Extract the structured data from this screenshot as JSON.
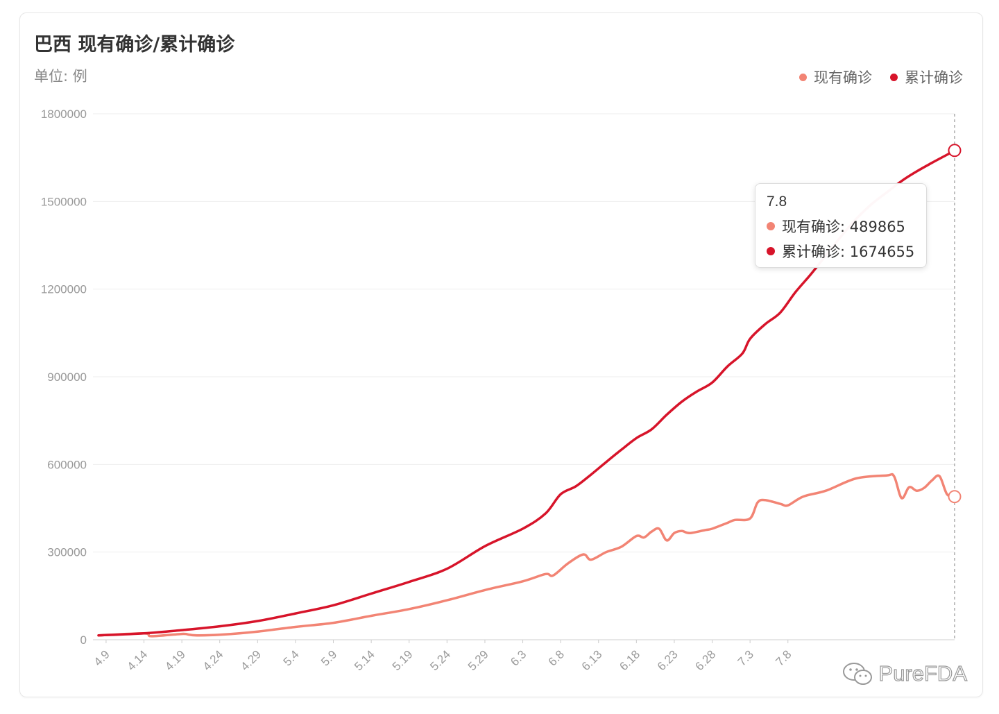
{
  "header": {
    "title": "巴西 现有确诊/累计确诊",
    "unit": "单位: 例"
  },
  "legend": [
    {
      "name": "现有确诊",
      "color": "#f28474"
    },
    {
      "name": "累计确诊",
      "color": "#d7142a"
    }
  ],
  "tooltip": {
    "date": "7.8",
    "rows": [
      {
        "label": "现有确诊: 489865",
        "color": "#f28474"
      },
      {
        "label": "累计确诊: 1674655",
        "color": "#d7142a"
      }
    ]
  },
  "watermark": {
    "text": "PureFDA",
    "icon": "wechat-icon"
  },
  "chart_data": {
    "type": "line",
    "title": "巴西 现有确诊/累计确诊",
    "ylabel": "单位: 例",
    "ylim": [
      0,
      1800000
    ],
    "yticks": [
      "0",
      "300000",
      "600000",
      "900000",
      "1200000",
      "1500000",
      "1800000"
    ],
    "xticks": [
      "4.9",
      "4.14",
      "4.19",
      "4.24",
      "4.29",
      "5.4",
      "5.9",
      "5.14",
      "5.19",
      "5.24",
      "5.29",
      "6.3",
      "6.8",
      "6.13",
      "6.18",
      "6.23",
      "6.28",
      "7.3",
      "7.8"
    ],
    "x_start_label": "4.8",
    "x_days": 91,
    "grid": "horizontal",
    "legend_position": "top-right",
    "series": [
      {
        "name": "现有确诊",
        "color": "#f28474",
        "points": [
          [
            0,
            15000
          ],
          [
            6,
            22000
          ],
          [
            7,
            12000
          ],
          [
            11,
            20000
          ],
          [
            12,
            17000
          ],
          [
            13,
            15000
          ],
          [
            16,
            17000
          ],
          [
            21,
            28000
          ],
          [
            26,
            44000
          ],
          [
            31,
            58000
          ],
          [
            36,
            82000
          ],
          [
            41,
            105000
          ],
          [
            46,
            135000
          ],
          [
            51,
            170000
          ],
          [
            56,
            200000
          ],
          [
            59,
            225000
          ],
          [
            60,
            220000
          ],
          [
            62,
            262000
          ],
          [
            64,
            292000
          ],
          [
            65,
            274000
          ],
          [
            67,
            300000
          ],
          [
            69,
            318000
          ],
          [
            71,
            355000
          ],
          [
            72,
            350000
          ],
          [
            73,
            370000
          ],
          [
            74,
            380000
          ],
          [
            75,
            340000
          ],
          [
            76,
            365000
          ],
          [
            77,
            372000
          ],
          [
            78,
            365000
          ],
          [
            80,
            375000
          ],
          [
            81,
            380000
          ],
          [
            83,
            400000
          ],
          [
            84,
            410000
          ],
          [
            86,
            415000
          ],
          [
            87,
            470000
          ],
          [
            88,
            478000
          ],
          [
            90,
            465000
          ],
          [
            91,
            460000
          ],
          [
            93,
            490000
          ],
          [
            96,
            510000
          ],
          [
            100,
            552000
          ],
          [
            104,
            562000
          ],
          [
            105,
            560000
          ],
          [
            106,
            485000
          ],
          [
            107,
            522000
          ],
          [
            108,
            510000
          ],
          [
            109,
            520000
          ],
          [
            110,
            545000
          ],
          [
            111,
            560000
          ],
          [
            112,
            498000
          ],
          [
            113,
            489865
          ]
        ]
      },
      {
        "name": "累计确诊",
        "color": "#d7142a",
        "points": [
          [
            0,
            15000
          ],
          [
            6,
            22000
          ],
          [
            11,
            33000
          ],
          [
            16,
            46000
          ],
          [
            21,
            64000
          ],
          [
            26,
            90000
          ],
          [
            31,
            118000
          ],
          [
            36,
            158000
          ],
          [
            41,
            198000
          ],
          [
            46,
            243000
          ],
          [
            51,
            320000
          ],
          [
            56,
            380000
          ],
          [
            59,
            432000
          ],
          [
            61,
            498000
          ],
          [
            63,
            525000
          ],
          [
            65,
            565000
          ],
          [
            67,
            608000
          ],
          [
            69,
            650000
          ],
          [
            71,
            690000
          ],
          [
            73,
            720000
          ],
          [
            75,
            770000
          ],
          [
            77,
            815000
          ],
          [
            79,
            850000
          ],
          [
            81,
            880000
          ],
          [
            83,
            935000
          ],
          [
            85,
            980000
          ],
          [
            86,
            1030000
          ],
          [
            88,
            1080000
          ],
          [
            90,
            1120000
          ],
          [
            92,
            1190000
          ],
          [
            94,
            1250000
          ],
          [
            96,
            1315000
          ],
          [
            98,
            1380000
          ],
          [
            100,
            1440000
          ],
          [
            102,
            1490000
          ],
          [
            104,
            1530000
          ],
          [
            106,
            1570000
          ],
          [
            108,
            1603000
          ],
          [
            110,
            1632000
          ],
          [
            112,
            1660000
          ],
          [
            113,
            1674655
          ]
        ]
      }
    ]
  }
}
